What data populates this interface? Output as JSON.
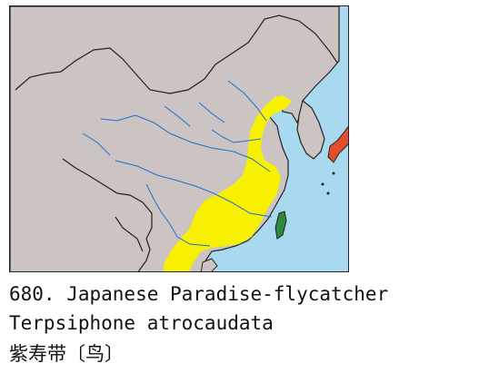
{
  "caption": {
    "species_line": "680. Japanese Paradise-flycatcher",
    "scientific_name": "Terpsiphone atrocaudata",
    "chinese_name": "紫寿带〔鸟〕"
  },
  "colors": {
    "sea": "#a9d9ee",
    "land": "#cbc4c2",
    "border": "#222222",
    "rivers": "#1f6fd1",
    "range_breeding": "#f7f000",
    "range_taiwan": "#2c8a3c",
    "range_japan": "#e0502e"
  }
}
